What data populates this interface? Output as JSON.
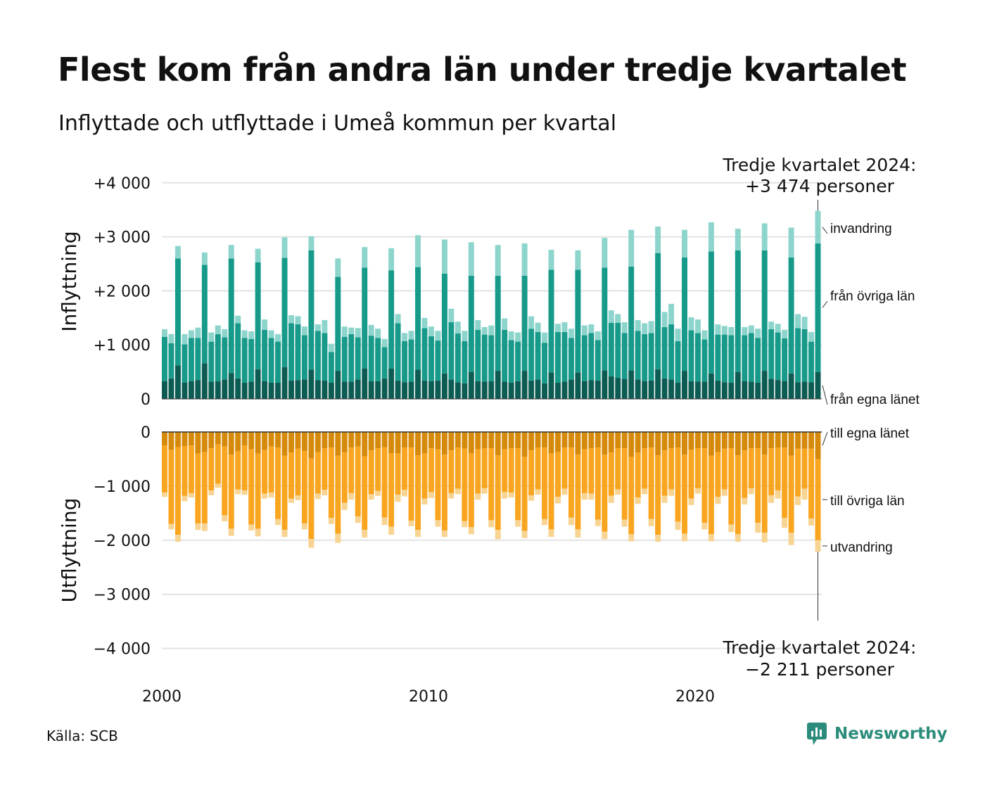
{
  "header": {
    "title": "Flest kom från andra län under tredje kvartalet",
    "subtitle": "Inflyttade och utflyttade i Umeå kommun per kvartal"
  },
  "footer": {
    "source": "Källa: SCB",
    "brand": "Newsworthy"
  },
  "colors": {
    "in_own": "#0d5c53",
    "in_other": "#179a8a",
    "in_immigration": "#8dd5cc",
    "out_own": "#d68a0c",
    "out_other": "#f9a51f",
    "out_emigration": "#f8d493",
    "grid": "#e3e3e3",
    "brand": "#2c8c7c"
  },
  "chart_data": {
    "type": "bar",
    "stacked": true,
    "x_start": "2000 Q1",
    "x_end": "2024 Q3",
    "x_ticks": [
      "2000",
      "2010",
      "2020"
    ],
    "y_ticks_in": [
      "+4 000",
      "+3 000",
      "+2 000",
      "+1 000",
      "0"
    ],
    "y_ticks_out": [
      "0",
      "−1 000",
      "−2 000",
      "−3 000",
      "−4 000"
    ],
    "ylim_in": [
      0,
      4000
    ],
    "ylim_out": [
      -4000,
      0
    ],
    "ylabel_in": "Inflyttning",
    "ylabel_out": "Utflyttning",
    "grid": true,
    "in_series": [
      {
        "name": "från egna länet",
        "values": [
          330,
          380,
          620,
          300,
          330,
          350,
          660,
          320,
          330,
          360,
          480,
          380,
          300,
          320,
          550,
          330,
          300,
          300,
          590,
          340,
          350,
          360,
          540,
          350,
          340,
          300,
          520,
          320,
          320,
          360,
          560,
          330,
          330,
          380,
          560,
          340,
          310,
          320,
          540,
          340,
          330,
          340,
          470,
          360,
          310,
          290,
          500,
          330,
          320,
          330,
          520,
          320,
          300,
          330,
          520,
          340,
          360,
          290,
          490,
          300,
          320,
          360,
          490,
          330,
          350,
          340,
          530,
          420,
          390,
          370,
          530,
          360,
          330,
          340,
          550,
          380,
          360,
          300,
          520,
          330,
          320,
          320,
          470,
          340,
          310,
          300,
          500,
          330,
          320,
          300,
          520,
          370,
          350,
          330,
          470,
          310,
          320,
          310,
          500
        ]
      },
      {
        "name": "från övriga län",
        "values": [
          820,
          650,
          1980,
          710,
          800,
          780,
          1820,
          740,
          870,
          780,
          2120,
          1020,
          830,
          790,
          1980,
          950,
          830,
          760,
          2020,
          1060,
          1030,
          820,
          2210,
          910,
          880,
          570,
          1740,
          830,
          880,
          780,
          1870,
          840,
          800,
          580,
          1820,
          1060,
          760,
          780,
          1900,
          970,
          830,
          740,
          1850,
          1060,
          900,
          780,
          1780,
          950,
          870,
          850,
          1760,
          960,
          790,
          730,
          1760,
          960,
          880,
          750,
          1900,
          940,
          920,
          770,
          1900,
          850,
          870,
          750,
          1900,
          990,
          1020,
          850,
          1920,
          900,
          870,
          880,
          2150,
          950,
          1020,
          770,
          2100,
          940,
          900,
          780,
          2260,
          850,
          880,
          880,
          2250,
          850,
          900,
          830,
          2230,
          920,
          880,
          790,
          2150,
          1000,
          970,
          750,
          2380
        ]
      },
      {
        "name": "invandring",
        "values": [
          140,
          170,
          230,
          190,
          140,
          190,
          230,
          170,
          160,
          150,
          250,
          140,
          140,
          140,
          250,
          190,
          140,
          140,
          380,
          150,
          150,
          160,
          260,
          120,
          240,
          150,
          340,
          190,
          120,
          170,
          380,
          200,
          170,
          150,
          410,
          170,
          150,
          160,
          590,
          190,
          180,
          180,
          630,
          250,
          220,
          190,
          620,
          180,
          140,
          180,
          570,
          210,
          160,
          170,
          600,
          230,
          170,
          190,
          370,
          150,
          180,
          170,
          360,
          180,
          160,
          160,
          550,
          230,
          160,
          200,
          680,
          200,
          200,
          220,
          490,
          280,
          380,
          230,
          510,
          240,
          250,
          170,
          540,
          190,
          160,
          150,
          400,
          150,
          140,
          170,
          500,
          140,
          160,
          160,
          550,
          260,
          230,
          180,
          600
        ]
      }
    ],
    "out_series": [
      {
        "name": "till egna länet",
        "values": [
          -250,
          -330,
          -280,
          -260,
          -250,
          -400,
          -370,
          -300,
          -230,
          -270,
          -420,
          -360,
          -250,
          -320,
          -400,
          -330,
          -270,
          -290,
          -440,
          -380,
          -310,
          -350,
          -490,
          -370,
          -300,
          -290,
          -440,
          -380,
          -290,
          -270,
          -450,
          -340,
          -300,
          -280,
          -390,
          -390,
          -290,
          -290,
          -430,
          -390,
          -300,
          -320,
          -420,
          -340,
          -290,
          -310,
          -390,
          -320,
          -300,
          -300,
          -430,
          -320,
          -300,
          -300,
          -460,
          -340,
          -290,
          -290,
          -400,
          -370,
          -290,
          -290,
          -420,
          -320,
          -300,
          -290,
          -420,
          -380,
          -300,
          -300,
          -460,
          -380,
          -300,
          -290,
          -430,
          -340,
          -300,
          -290,
          -420,
          -330,
          -300,
          -300,
          -440,
          -370,
          -310,
          -300,
          -430,
          -340,
          -300,
          -300,
          -420,
          -300,
          -290,
          -290,
          -440,
          -310,
          -310,
          -310,
          -500
        ]
      },
      {
        "name": "till övriga län",
        "values": [
          -870,
          -1370,
          -1620,
          -920,
          -880,
          -1290,
          -1320,
          -780,
          -730,
          -1270,
          -1370,
          -700,
          -830,
          -1390,
          -1390,
          -810,
          -850,
          -1320,
          -1370,
          -850,
          -860,
          -1340,
          -1490,
          -770,
          -770,
          -1300,
          -1440,
          -930,
          -840,
          -1290,
          -1360,
          -810,
          -790,
          -1300,
          -1360,
          -770,
          -780,
          -1350,
          -1380,
          -840,
          -810,
          -1310,
          -1400,
          -790,
          -760,
          -1340,
          -1370,
          -820,
          -740,
          -1330,
          -1380,
          -790,
          -820,
          -1330,
          -1370,
          -830,
          -770,
          -1320,
          -1400,
          -830,
          -760,
          -1290,
          -1380,
          -810,
          -840,
          -1330,
          -1420,
          -800,
          -760,
          -1320,
          -1430,
          -830,
          -750,
          -1320,
          -1470,
          -840,
          -760,
          -1370,
          -1460,
          -900,
          -740,
          -1380,
          -1450,
          -830,
          -750,
          -1410,
          -1460,
          -880,
          -740,
          -1380,
          -1440,
          -870,
          -790,
          -1300,
          -1420,
          -880,
          -740,
          -1290,
          -1500
        ]
      },
      {
        "name": "utvandring",
        "values": [
          -80,
          -100,
          -130,
          -100,
          -80,
          -120,
          -140,
          -90,
          -70,
          -110,
          -130,
          -90,
          -80,
          -110,
          -140,
          -90,
          -90,
          -110,
          -130,
          -80,
          -90,
          -110,
          -160,
          -100,
          -100,
          -110,
          -170,
          -130,
          -120,
          -120,
          -140,
          -100,
          -90,
          -140,
          -150,
          -130,
          -120,
          -100,
          -130,
          -110,
          -110,
          -120,
          -120,
          -100,
          -100,
          -110,
          -130,
          -110,
          -100,
          -130,
          -170,
          -120,
          -90,
          -120,
          -130,
          -100,
          -100,
          -110,
          -140,
          -120,
          -110,
          -140,
          -150,
          -120,
          -110,
          -120,
          -140,
          -130,
          -100,
          -130,
          -130,
          -120,
          -100,
          -130,
          -130,
          -130,
          -120,
          -150,
          -140,
          -120,
          -100,
          -120,
          -130,
          -130,
          -120,
          -140,
          -140,
          -120,
          -110,
          -180,
          -180,
          -140,
          -150,
          -180,
          -230,
          -160,
          -200,
          -130,
          -211
        ]
      }
    ],
    "in_labels": [
      "invandring",
      "från övriga län",
      "från egna länet"
    ],
    "out_labels": [
      "till egna länet",
      "till övriga län",
      "utvandring"
    ],
    "callout_top": [
      "Tredje kvartalet 2024:",
      "+3 474 personer"
    ],
    "callout_bottom": [
      "Tredje kvartalet 2024:",
      "−2 211 personer"
    ]
  }
}
